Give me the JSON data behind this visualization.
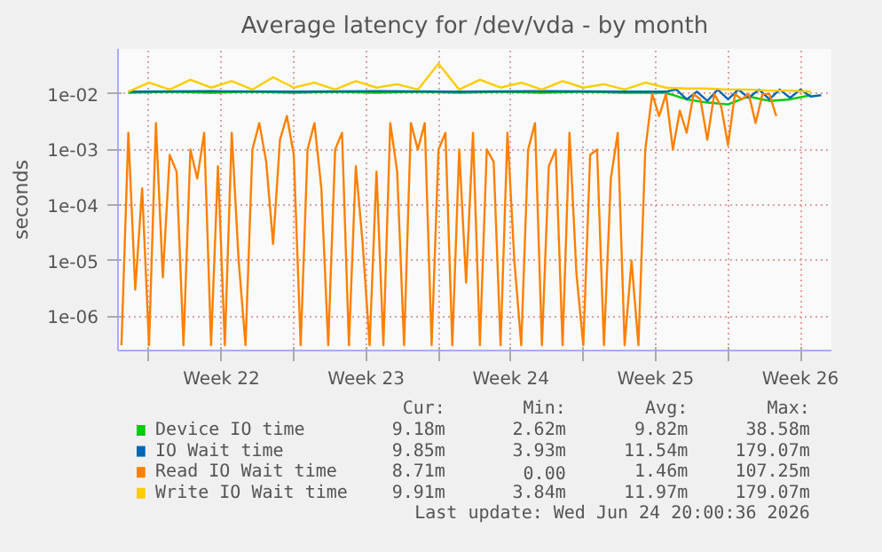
{
  "chart_data": {
    "type": "line",
    "title": "Average latency for /dev/vda - by month",
    "ylabel": "seconds",
    "log": "y",
    "grid": true,
    "legend": "bottom",
    "marker": "none",
    "line_style": "solid",
    "xlim": [
      "2026-05-23T12:00",
      "2026-06-27T00:00"
    ],
    "ylim": [
      2.4e-07,
      0.065
    ],
    "xticks": [
      {
        "value": "2026-05-25",
        "label": null
      },
      {
        "value": "2026-05-28T12:00",
        "label": "Week 22"
      },
      {
        "value": "2026-06-01",
        "label": null
      },
      {
        "value": "2026-06-04T12:00",
        "label": "Week 23"
      },
      {
        "value": "2026-06-08",
        "label": null
      },
      {
        "value": "2026-06-11T12:00",
        "label": "Week 24"
      },
      {
        "value": "2026-06-15",
        "label": null
      },
      {
        "value": "2026-06-18T12:00",
        "label": "Week 25"
      },
      {
        "value": "2026-06-22",
        "label": null
      },
      {
        "value": "2026-06-25T12:00",
        "label": "Week 26"
      }
    ],
    "yticks": [
      {
        "value": 1e-06,
        "label": "1e-06"
      },
      {
        "value": 1e-05,
        "label": "1e-05"
      },
      {
        "value": 0.0001,
        "label": "1e-04"
      },
      {
        "value": 0.001,
        "label": "1e-03"
      },
      {
        "value": 0.01,
        "label": "1e-02"
      }
    ],
    "series": [
      {
        "name": "Device IO time",
        "color": "#00cc00",
        "x": [
          "2026-05-24",
          "2026-05-26",
          "2026-05-28",
          "2026-05-30",
          "2026-06-01",
          "2026-06-03",
          "2026-06-05",
          "2026-06-07",
          "2026-06-09",
          "2026-06-11",
          "2026-06-13",
          "2026-06-15",
          "2026-06-17",
          "2026-06-19",
          "2026-06-20",
          "2026-06-21",
          "2026-06-22",
          "2026-06-23",
          "2026-06-24",
          "2026-06-25",
          "2026-06-26"
        ],
        "values": [
          0.0105,
          0.011,
          0.0105,
          0.011,
          0.0105,
          0.011,
          0.0105,
          0.011,
          0.0105,
          0.011,
          0.0105,
          0.011,
          0.0105,
          0.0105,
          0.008,
          0.007,
          0.0065,
          0.009,
          0.0075,
          0.008,
          0.0095
        ]
      },
      {
        "name": "IO Wait time",
        "color": "#0066b3",
        "x": [
          "2026-05-24",
          "2026-05-28",
          "2026-06-01",
          "2026-06-05",
          "2026-06-09",
          "2026-06-13",
          "2026-06-17",
          "2026-06-19",
          "2026-06-19T12:00",
          "2026-06-20",
          "2026-06-20T12:00",
          "2026-06-21",
          "2026-06-21T12:00",
          "2026-06-22",
          "2026-06-22T12:00",
          "2026-06-23",
          "2026-06-23T12:00",
          "2026-06-24",
          "2026-06-24T12:00",
          "2026-06-25",
          "2026-06-25T12:00",
          "2026-06-26",
          "2026-06-26T12:00"
        ],
        "values": [
          0.011,
          0.0112,
          0.011,
          0.0112,
          0.011,
          0.0112,
          0.011,
          0.011,
          0.012,
          0.008,
          0.011,
          0.0075,
          0.012,
          0.008,
          0.012,
          0.0085,
          0.012,
          0.008,
          0.012,
          0.0085,
          0.012,
          0.009,
          0.0095
        ]
      },
      {
        "name": "Read IO Wait time",
        "color": "#ff8000",
        "x": [
          "2026-05-23T16:00",
          "2026-05-24T00:00",
          "2026-05-24T08:00",
          "2026-05-24T16:00",
          "2026-05-25T00:00",
          "2026-05-25T08:00",
          "2026-05-25T16:00",
          "2026-05-26T00:00",
          "2026-05-26T08:00",
          "2026-05-26T16:00",
          "2026-05-27T00:00",
          "2026-05-27T08:00",
          "2026-05-27T16:00",
          "2026-05-28T00:00",
          "2026-05-28T08:00",
          "2026-05-28T16:00",
          "2026-05-29T00:00",
          "2026-05-29T08:00",
          "2026-05-29T16:00",
          "2026-05-30T00:00",
          "2026-05-30T08:00",
          "2026-05-30T16:00",
          "2026-05-31T00:00",
          "2026-05-31T08:00",
          "2026-05-31T16:00",
          "2026-06-01T00:00",
          "2026-06-01T08:00",
          "2026-06-01T16:00",
          "2026-06-02T00:00",
          "2026-06-02T08:00",
          "2026-06-02T16:00",
          "2026-06-03T00:00",
          "2026-06-03T08:00",
          "2026-06-03T16:00",
          "2026-06-04T00:00",
          "2026-06-04T08:00",
          "2026-06-04T16:00",
          "2026-06-05T00:00",
          "2026-06-05T08:00",
          "2026-06-05T16:00",
          "2026-06-06T00:00",
          "2026-06-06T08:00",
          "2026-06-06T16:00",
          "2026-06-07T00:00",
          "2026-06-07T08:00",
          "2026-06-07T16:00",
          "2026-06-08T00:00",
          "2026-06-08T08:00",
          "2026-06-08T16:00",
          "2026-06-09T00:00",
          "2026-06-09T08:00",
          "2026-06-09T16:00",
          "2026-06-10T00:00",
          "2026-06-10T08:00",
          "2026-06-10T16:00",
          "2026-06-11T00:00",
          "2026-06-11T08:00",
          "2026-06-11T16:00",
          "2026-06-12T00:00",
          "2026-06-12T08:00",
          "2026-06-12T16:00",
          "2026-06-13T00:00",
          "2026-06-13T08:00",
          "2026-06-13T16:00",
          "2026-06-14T00:00",
          "2026-06-14T08:00",
          "2026-06-14T16:00",
          "2026-06-15T00:00",
          "2026-06-15T08:00",
          "2026-06-15T16:00",
          "2026-06-16T00:00",
          "2026-06-16T08:00",
          "2026-06-16T16:00",
          "2026-06-17T00:00",
          "2026-06-17T08:00",
          "2026-06-17T16:00",
          "2026-06-18T00:00",
          "2026-06-18T08:00",
          "2026-06-18T16:00",
          "2026-06-19T00:00",
          "2026-06-19T08:00",
          "2026-06-19T16:00",
          "2026-06-20T00:00",
          "2026-06-20T08:00",
          "2026-06-20T16:00",
          "2026-06-21T00:00",
          "2026-06-21T08:00",
          "2026-06-21T16:00",
          "2026-06-22T00:00",
          "2026-06-22T08:00",
          "2026-06-22T16:00",
          "2026-06-23T00:00",
          "2026-06-23T08:00",
          "2026-06-23T16:00",
          "2026-06-24T00:00",
          "2026-06-24T08:00"
        ],
        "values": [
          3e-07,
          0.002,
          3e-06,
          0.0002,
          3e-07,
          0.003,
          5e-06,
          0.0008,
          0.0004,
          3e-07,
          0.001,
          0.0003,
          0.002,
          3e-07,
          0.0005,
          3e-07,
          0.002,
          1e-05,
          3e-07,
          0.001,
          0.003,
          0.0006,
          2e-05,
          0.0015,
          0.004,
          0.0008,
          3e-07,
          0.001,
          0.003,
          0.0002,
          3e-07,
          0.001,
          0.002,
          3e-07,
          0.0005,
          2e-05,
          3e-07,
          0.0004,
          3e-07,
          0.003,
          0.0004,
          3e-07,
          0.003,
          0.001,
          0.003,
          3e-07,
          0.001,
          0.002,
          3e-07,
          0.001,
          4e-06,
          0.002,
          3e-07,
          0.001,
          0.0006,
          3e-07,
          0.002,
          1e-05,
          3e-07,
          0.001,
          0.003,
          3e-07,
          0.0005,
          0.001,
          3e-07,
          0.002,
          6e-06,
          3e-07,
          0.0008,
          0.001,
          3e-07,
          0.0003,
          0.002,
          3e-07,
          1e-05,
          3e-07,
          0.001,
          0.01,
          0.004,
          0.01,
          0.001,
          0.005,
          0.002,
          0.01,
          0.008,
          0.0015,
          0.01,
          0.006,
          0.0012,
          0.01,
          0.008,
          0.01,
          0.003,
          0.01,
          0.01,
          0.004
        ]
      },
      {
        "name": "Write IO Wait time",
        "color": "#ffcc00",
        "x": [
          "2026-05-24",
          "2026-05-25",
          "2026-05-26",
          "2026-05-27",
          "2026-05-28",
          "2026-05-29",
          "2026-05-30",
          "2026-05-31",
          "2026-06-01",
          "2026-06-02",
          "2026-06-03",
          "2026-06-04",
          "2026-06-05",
          "2026-06-06",
          "2026-06-07",
          "2026-06-08",
          "2026-06-09",
          "2026-06-10",
          "2026-06-11",
          "2026-06-12",
          "2026-06-13",
          "2026-06-14",
          "2026-06-15",
          "2026-06-16",
          "2026-06-17",
          "2026-06-18",
          "2026-06-19",
          "2026-06-20",
          "2026-06-21",
          "2026-06-22",
          "2026-06-23",
          "2026-06-24",
          "2026-06-25",
          "2026-06-26"
        ],
        "values": [
          0.011,
          0.016,
          0.012,
          0.018,
          0.013,
          0.017,
          0.012,
          0.02,
          0.013,
          0.016,
          0.012,
          0.017,
          0.013,
          0.015,
          0.012,
          0.035,
          0.012,
          0.018,
          0.013,
          0.016,
          0.012,
          0.017,
          0.013,
          0.015,
          0.012,
          0.016,
          0.013,
          0.0125,
          0.0125,
          0.012,
          0.012,
          0.0115,
          0.0115,
          0.011
        ]
      }
    ],
    "annotations": [
      "Cur:",
      "Min:",
      "Avg:",
      "Max:",
      "9.18m",
      "2.62m",
      "9.82m",
      "38.58m",
      "9.85m",
      "3.93m",
      "11.54m",
      "179.07m",
      "8.71m",
      "0.00",
      "1.46m",
      "107.25m",
      "9.91m",
      "3.84m",
      "11.97m",
      "179.07m",
      "Last update: Wed Jun 24 20:00:36 2026"
    ]
  }
}
